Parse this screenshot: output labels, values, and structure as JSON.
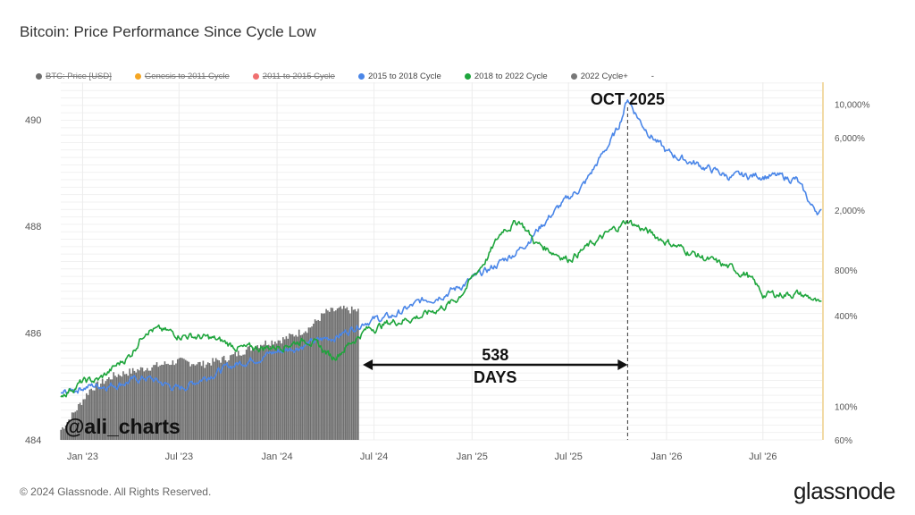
{
  "title": "Bitcoin: Price Performance Since Cycle Low",
  "legend": [
    {
      "label": "BTC: Price [USD]",
      "color": "#6e6e6e",
      "disabled": true
    },
    {
      "label": "Genesis to 2011 Cycle",
      "color": "#f5a623",
      "disabled": true
    },
    {
      "label": "2011 to 2015 Cycle",
      "color": "#f07070",
      "disabled": true
    },
    {
      "label": "2015 to 2018 Cycle",
      "color": "#4a86e8",
      "disabled": false
    },
    {
      "label": "2018 to 2022 Cycle",
      "color": "#1ea53c",
      "disabled": false
    },
    {
      "label": "2022 Cycle+",
      "color": "#777777",
      "disabled": false
    },
    {
      "label": "-",
      "color": "",
      "disabled": false
    }
  ],
  "footer": {
    "copyright": "© 2024 Glassnode. All Rights Reserved.",
    "brand": "glassnode"
  },
  "chart_data": {
    "type": "line",
    "x_labels": [
      "Jan '23",
      "Jul '23",
      "Jan '24",
      "Jul '24",
      "Jan '25",
      "Jul '25",
      "Jan '26",
      "Jul '26"
    ],
    "x_range": [
      "2022-11-21",
      "2026-10-20"
    ],
    "y_left_labels": [
      "484",
      "486",
      "488",
      "490"
    ],
    "y_left_range": [
      484,
      490.7
    ],
    "y_right_labels": [
      "60%",
      "100%",
      "400%",
      "800%",
      "2,000%",
      "6,000%",
      "10,000%"
    ],
    "y_right_scale": "log",
    "y_right_range_percent": [
      60,
      14000
    ],
    "series": [
      {
        "name": "2015 to 2018 Cycle",
        "color": "#4a86e8",
        "x": [
          "2022-11-21",
          "2023-01-01",
          "2023-03-01",
          "2023-05-01",
          "2023-07-01",
          "2023-09-01",
          "2023-11-01",
          "2024-01-01",
          "2024-03-01",
          "2024-05-01",
          "2024-06-15",
          "2024-08-01",
          "2024-10-01",
          "2024-12-01",
          "2025-02-01",
          "2025-04-01",
          "2025-06-01",
          "2025-08-01",
          "2025-10-01",
          "2025-10-20",
          "2025-11-15",
          "2026-01-01",
          "2026-03-01",
          "2026-05-01",
          "2026-07-01",
          "2026-09-01",
          "2026-10-01",
          "2026-10-20"
        ],
        "y": [
          120,
          135,
          140,
          155,
          130,
          165,
          200,
          230,
          260,
          300,
          370,
          390,
          500,
          600,
          800,
          1100,
          1900,
          3000,
          6800,
          11000,
          7500,
          4800,
          4000,
          3300,
          3400,
          3200,
          2100,
          1900
        ]
      },
      {
        "name": "2018 to 2022 Cycle",
        "color": "#1ea53c",
        "x": [
          "2022-11-21",
          "2023-01-01",
          "2023-02-01",
          "2023-04-01",
          "2023-05-01",
          "2023-07-01",
          "2023-09-01",
          "2023-11-01",
          "2024-01-01",
          "2024-03-01",
          "2024-04-15",
          "2024-06-15",
          "2024-08-01",
          "2024-10-01",
          "2024-12-01",
          "2025-01-01",
          "2025-02-01",
          "2025-03-01",
          "2025-04-01",
          "2025-05-01",
          "2025-07-01",
          "2025-09-01",
          "2025-10-20",
          "2025-12-01",
          "2026-02-01",
          "2026-04-01",
          "2026-06-01",
          "2026-07-01",
          "2026-09-01",
          "2026-10-01",
          "2026-10-20"
        ],
        "y": [
          120,
          145,
          150,
          220,
          330,
          300,
          280,
          240,
          250,
          280,
          210,
          320,
          360,
          400,
          500,
          700,
          1000,
          1500,
          1700,
          1200,
          950,
          1300,
          1700,
          1400,
          1100,
          900,
          750,
          550,
          560,
          520,
          450
        ]
      },
      {
        "name": "2022 Cycle+",
        "color": "#777777",
        "x": [
          "2022-11-21",
          "2022-12-15",
          "2023-01-15",
          "2023-03-01",
          "2023-05-01",
          "2023-07-01",
          "2023-08-15",
          "2023-10-01",
          "2023-12-01",
          "2024-01-15",
          "2024-03-01",
          "2024-04-01",
          "2024-05-01",
          "2024-06-01"
        ],
        "y": [
          70,
          90,
          130,
          160,
          180,
          200,
          190,
          210,
          260,
          280,
          330,
          420,
          440,
          430
        ]
      }
    ],
    "annotations": [
      {
        "text": "OCT 2025",
        "date": "2025-10-20"
      },
      {
        "text": "538",
        "sub": "DAYS",
        "from": "2024-06-10",
        "to": "2025-10-20"
      },
      {
        "text": "@ali_charts"
      }
    ]
  }
}
